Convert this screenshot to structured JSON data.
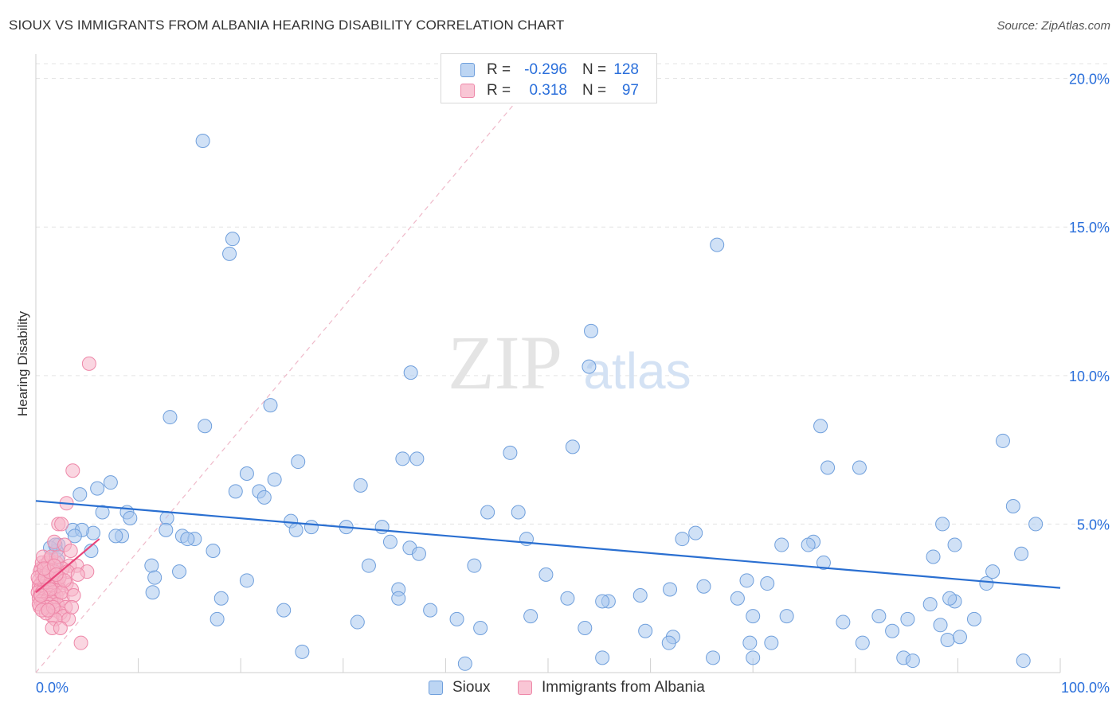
{
  "header": {
    "title": "SIOUX VS IMMIGRANTS FROM ALBANIA HEARING DISABILITY CORRELATION CHART",
    "source": "Source: ZipAtlas.com"
  },
  "watermark": {
    "zip": "ZIP",
    "atlas": "atlas"
  },
  "colors": {
    "sioux_fill": "#a9c8ef",
    "sioux_stroke": "#6f9fdc",
    "sioux_line": "#2a6fd1",
    "albania_fill": "#f6b5c8",
    "albania_stroke": "#ee87a8",
    "albania_line": "#e8457a",
    "accent_text": "#2a6fdb"
  },
  "stats": [
    {
      "r_label": "R =",
      "r": "-0.296",
      "n_label": "N =",
      "n": "128"
    },
    {
      "r_label": "R =",
      "r": "0.318",
      "n_label": "N =",
      "n": "97"
    }
  ],
  "chart_data": {
    "type": "scatter",
    "title": "SIOUX VS IMMIGRANTS FROM ALBANIA HEARING DISABILITY CORRELATION CHART",
    "xlabel": "",
    "ylabel": "Hearing Disability",
    "xlim": [
      0,
      100
    ],
    "ylim": [
      0,
      20.5
    ],
    "x_tick_labels": [
      {
        "value": 0,
        "label": "0.0%"
      },
      {
        "value": 100,
        "label": "100.0%"
      }
    ],
    "y_tick_labels": [
      {
        "value": 5,
        "label": "5.0%"
      },
      {
        "value": 10,
        "label": "10.0%"
      },
      {
        "value": 15,
        "label": "15.0%"
      },
      {
        "value": 20,
        "label": "20.0%"
      }
    ],
    "grid": true,
    "legend": "bottom-center",
    "series": [
      {
        "name": "Sioux",
        "trend": {
          "x": [
            0,
            100
          ],
          "y": [
            5.78,
            2.85
          ]
        },
        "points": [
          [
            16.3,
            17.9
          ],
          [
            19.2,
            14.6
          ],
          [
            18.9,
            14.1
          ],
          [
            66.5,
            14.4
          ],
          [
            54.2,
            11.5
          ],
          [
            54.0,
            10.3
          ],
          [
            36.6,
            10.1
          ],
          [
            13.1,
            8.6
          ],
          [
            16.5,
            8.3
          ],
          [
            22.9,
            9.0
          ],
          [
            76.6,
            8.3
          ],
          [
            94.4,
            7.8
          ],
          [
            52.4,
            7.6
          ],
          [
            46.3,
            7.4
          ],
          [
            35.8,
            7.2
          ],
          [
            25.6,
            7.1
          ],
          [
            37.2,
            7.2
          ],
          [
            80.4,
            6.9
          ],
          [
            77.3,
            6.9
          ],
          [
            20.6,
            6.7
          ],
          [
            23.3,
            6.5
          ],
          [
            31.7,
            6.3
          ],
          [
            19.5,
            6.1
          ],
          [
            21.8,
            6.1
          ],
          [
            22.3,
            5.9
          ],
          [
            7.3,
            6.4
          ],
          [
            6.0,
            6.2
          ],
          [
            4.3,
            6.0
          ],
          [
            8.9,
            5.4
          ],
          [
            6.5,
            5.4
          ],
          [
            9.2,
            5.2
          ],
          [
            12.8,
            5.2
          ],
          [
            3.6,
            4.8
          ],
          [
            5.6,
            4.7
          ],
          [
            4.5,
            4.8
          ],
          [
            3.8,
            4.6
          ],
          [
            8.4,
            4.6
          ],
          [
            7.8,
            4.6
          ],
          [
            12.7,
            4.8
          ],
          [
            14.3,
            4.6
          ],
          [
            15.5,
            4.5
          ],
          [
            14.8,
            4.5
          ],
          [
            17.3,
            4.1
          ],
          [
            24.9,
            5.1
          ],
          [
            25.4,
            4.8
          ],
          [
            26.9,
            4.9
          ],
          [
            30.3,
            4.9
          ],
          [
            33.8,
            4.9
          ],
          [
            34.6,
            4.4
          ],
          [
            36.5,
            4.2
          ],
          [
            37.4,
            4.0
          ],
          [
            44.1,
            5.4
          ],
          [
            47.1,
            5.4
          ],
          [
            47.9,
            4.5
          ],
          [
            63.1,
            4.5
          ],
          [
            64.4,
            4.7
          ],
          [
            72.8,
            4.3
          ],
          [
            75.9,
            4.4
          ],
          [
            75.4,
            4.3
          ],
          [
            88.5,
            5.0
          ],
          [
            87.6,
            3.9
          ],
          [
            89.7,
            4.3
          ],
          [
            95.4,
            5.6
          ],
          [
            97.6,
            5.0
          ],
          [
            96.2,
            4.0
          ],
          [
            2.2,
            4.3
          ],
          [
            2.1,
            3.8
          ],
          [
            2.0,
            4.1
          ],
          [
            1.4,
            4.2
          ],
          [
            1.9,
            4.3
          ],
          [
            5.4,
            4.1
          ],
          [
            11.3,
            3.6
          ],
          [
            14.0,
            3.4
          ],
          [
            11.6,
            3.2
          ],
          [
            20.6,
            3.1
          ],
          [
            35.4,
            2.8
          ],
          [
            32.5,
            3.6
          ],
          [
            35.4,
            2.5
          ],
          [
            42.8,
            3.6
          ],
          [
            49.8,
            3.3
          ],
          [
            51.9,
            2.5
          ],
          [
            55.9,
            2.4
          ],
          [
            69.4,
            3.1
          ],
          [
            71.4,
            3.0
          ],
          [
            65.2,
            2.9
          ],
          [
            68.5,
            2.5
          ],
          [
            76.9,
            3.7
          ],
          [
            89.7,
            2.4
          ],
          [
            87.3,
            2.3
          ],
          [
            92.8,
            3.0
          ],
          [
            93.4,
            3.4
          ],
          [
            89.2,
            2.5
          ],
          [
            18.1,
            2.5
          ],
          [
            11.4,
            2.7
          ],
          [
            24.2,
            2.1
          ],
          [
            17.7,
            1.8
          ],
          [
            31.4,
            1.7
          ],
          [
            38.5,
            2.1
          ],
          [
            41.1,
            1.8
          ],
          [
            43.4,
            1.5
          ],
          [
            48.3,
            1.9
          ],
          [
            55.3,
            2.4
          ],
          [
            59.0,
            2.6
          ],
          [
            61.9,
            2.8
          ],
          [
            53.6,
            1.5
          ],
          [
            59.5,
            1.4
          ],
          [
            62.2,
            1.2
          ],
          [
            61.8,
            1.0
          ],
          [
            71.8,
            1.0
          ],
          [
            70.0,
            1.9
          ],
          [
            73.3,
            1.9
          ],
          [
            82.3,
            1.9
          ],
          [
            83.6,
            1.4
          ],
          [
            85.1,
            1.8
          ],
          [
            88.3,
            1.6
          ],
          [
            91.6,
            1.8
          ],
          [
            89.0,
            1.1
          ],
          [
            90.2,
            1.2
          ],
          [
            80.7,
            1.0
          ],
          [
            69.7,
            1.0
          ],
          [
            78.8,
            1.7
          ],
          [
            55.3,
            0.5
          ],
          [
            66.1,
            0.5
          ],
          [
            70.0,
            0.5
          ],
          [
            84.7,
            0.5
          ],
          [
            85.6,
            0.4
          ],
          [
            96.4,
            0.4
          ],
          [
            41.9,
            0.3
          ],
          [
            26.0,
            0.7
          ]
        ]
      },
      {
        "name": "Immigrants from Albania",
        "trend": {
          "x": [
            0,
            6.2
          ],
          "y": [
            2.7,
            4.5
          ]
        },
        "points": [
          [
            5.2,
            10.4
          ],
          [
            3.6,
            6.8
          ],
          [
            3.0,
            5.7
          ],
          [
            2.2,
            5.0
          ],
          [
            2.5,
            5.0
          ],
          [
            1.8,
            4.4
          ],
          [
            2.8,
            4.3
          ],
          [
            3.4,
            4.1
          ],
          [
            1.3,
            3.8
          ],
          [
            2.0,
            3.7
          ],
          [
            0.8,
            3.6
          ],
          [
            0.5,
            3.5
          ],
          [
            0.4,
            3.4
          ],
          [
            1.1,
            3.5
          ],
          [
            3.3,
            3.6
          ],
          [
            4.0,
            3.6
          ],
          [
            5.0,
            3.4
          ],
          [
            0.6,
            3.3
          ],
          [
            1.0,
            3.3
          ],
          [
            1.4,
            3.2
          ],
          [
            1.7,
            3.2
          ],
          [
            0.3,
            3.1
          ],
          [
            0.7,
            3.1
          ],
          [
            1.2,
            3.1
          ],
          [
            2.2,
            3.0
          ],
          [
            0.5,
            3.0
          ],
          [
            0.9,
            3.0
          ],
          [
            1.5,
            3.0
          ],
          [
            2.0,
            3.0
          ],
          [
            3.0,
            3.0
          ],
          [
            0.3,
            2.9
          ],
          [
            0.8,
            2.9
          ],
          [
            1.3,
            2.9
          ],
          [
            1.9,
            2.9
          ],
          [
            0.4,
            2.8
          ],
          [
            1.0,
            2.8
          ],
          [
            1.6,
            2.8
          ],
          [
            2.3,
            2.8
          ],
          [
            3.5,
            2.8
          ],
          [
            0.2,
            2.7
          ],
          [
            0.6,
            2.7
          ],
          [
            1.1,
            2.7
          ],
          [
            1.7,
            2.7
          ],
          [
            0.4,
            2.6
          ],
          [
            0.9,
            2.6
          ],
          [
            1.4,
            2.6
          ],
          [
            2.0,
            2.6
          ],
          [
            0.3,
            2.5
          ],
          [
            0.8,
            2.5
          ],
          [
            1.2,
            2.5
          ],
          [
            1.8,
            2.5
          ],
          [
            2.6,
            2.5
          ],
          [
            0.5,
            2.4
          ],
          [
            1.0,
            2.4
          ],
          [
            1.5,
            2.4
          ],
          [
            0.7,
            2.3
          ],
          [
            1.3,
            2.3
          ],
          [
            2.1,
            2.3
          ],
          [
            2.9,
            2.2
          ],
          [
            0.4,
            2.2
          ],
          [
            1.1,
            2.2
          ],
          [
            1.9,
            2.1
          ],
          [
            2.4,
            2.0
          ],
          [
            1.6,
            1.9
          ],
          [
            2.7,
            1.9
          ],
          [
            3.2,
            1.8
          ],
          [
            1.9,
            1.8
          ],
          [
            1.6,
            1.5
          ],
          [
            2.4,
            1.5
          ],
          [
            4.4,
            1.0
          ],
          [
            0.6,
            3.7
          ],
          [
            1.2,
            3.7
          ],
          [
            2.6,
            3.5
          ],
          [
            3.1,
            3.4
          ],
          [
            0.2,
            3.2
          ],
          [
            1.8,
            3.4
          ],
          [
            0.7,
            3.9
          ],
          [
            1.5,
            3.9
          ],
          [
            2.2,
            3.9
          ],
          [
            0.9,
            3.2
          ],
          [
            1.3,
            3.4
          ],
          [
            0.3,
            2.3
          ],
          [
            2.5,
            2.7
          ],
          [
            3.7,
            2.6
          ],
          [
            2.3,
            3.2
          ],
          [
            1.0,
            2.0
          ],
          [
            0.6,
            2.1
          ],
          [
            1.7,
            2.2
          ],
          [
            4.1,
            3.3
          ],
          [
            0.8,
            3.5
          ],
          [
            1.4,
            2.8
          ],
          [
            2.8,
            3.1
          ],
          [
            3.5,
            2.2
          ],
          [
            0.5,
            2.6
          ],
          [
            1.8,
            3.6
          ],
          [
            1.2,
            2.1
          ],
          [
            2.0,
            3.3
          ]
        ]
      }
    ]
  }
}
